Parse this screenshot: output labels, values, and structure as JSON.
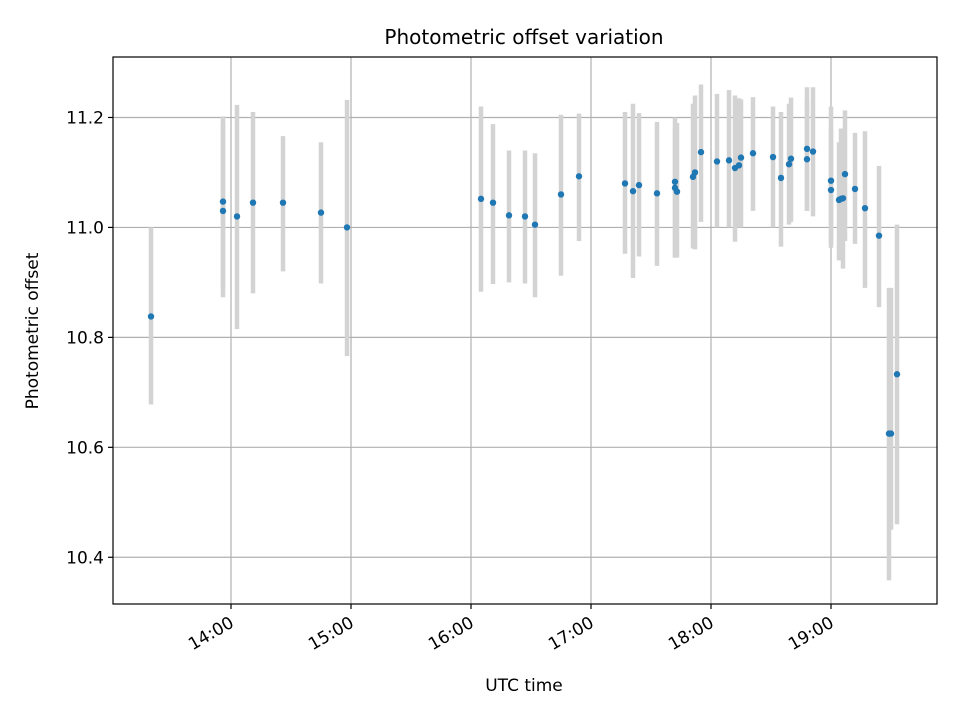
{
  "chart_data": {
    "type": "scatter",
    "title": "Photometric offset variation",
    "xlabel": "UTC time",
    "ylabel": "Photometric offset",
    "x_unit": "minutes of day (UTC)",
    "xlim": [
      "13:01",
      "19:53"
    ],
    "ylim": [
      10.315,
      11.31
    ],
    "x_ticks": [
      "14:00",
      "15:00",
      "16:00",
      "17:00",
      "18:00",
      "19:00"
    ],
    "y_ticks": [
      10.4,
      10.6,
      10.8,
      11.0,
      11.2
    ],
    "y_tick_labels": [
      "10.4",
      "10.6",
      "10.8",
      "11.0",
      "11.2"
    ],
    "grid": true,
    "colors": {
      "points": "#1f77b4",
      "errorbars": "#d3d3d3",
      "grid": "#b0b0b0",
      "axes": "#000000"
    },
    "series": [
      {
        "x": [
          "13:20",
          "13:56",
          "13:56",
          "14:03",
          "14:11",
          "14:26",
          "14:45",
          "14:58",
          "16:05",
          "16:11",
          "16:19",
          "16:27",
          "16:32",
          "16:45",
          "16:54",
          "17:17",
          "17:21",
          "17:24",
          "17:33",
          "17:42",
          "17:42",
          "17:43",
          "17:51",
          "17:52",
          "17:55",
          "18:03",
          "18:09",
          "18:12",
          "18:14",
          "18:15",
          "18:21",
          "18:31",
          "18:35",
          "18:39",
          "18:40",
          "18:48",
          "18:48",
          "18:51",
          "19:00",
          "19:00",
          "19:04",
          "19:05",
          "19:06",
          "19:07",
          "19:12",
          "19:17",
          "19:24",
          "19:29",
          "19:30",
          "19:33"
        ],
        "y": [
          10.838,
          11.03,
          11.047,
          11.02,
          11.045,
          11.045,
          11.027,
          11.0,
          11.052,
          11.045,
          11.022,
          11.02,
          11.005,
          11.06,
          11.093,
          11.08,
          11.066,
          11.077,
          11.062,
          11.083,
          11.072,
          11.065,
          11.092,
          11.1,
          11.137,
          11.12,
          11.122,
          11.108,
          11.113,
          11.127,
          11.135,
          11.128,
          11.09,
          11.115,
          11.125,
          11.143,
          11.124,
          11.138,
          11.085,
          11.068,
          11.05,
          11.052,
          11.053,
          11.097,
          11.07,
          11.035,
          10.985,
          10.625,
          10.625,
          10.733
        ],
        "err_low": [
          10.678,
          10.873,
          10.89,
          10.815,
          10.88,
          10.92,
          10.898,
          10.766,
          10.883,
          10.897,
          10.9,
          10.898,
          10.873,
          10.912,
          10.975,
          10.952,
          10.908,
          10.947,
          10.93,
          10.945,
          10.945,
          10.945,
          10.962,
          10.96,
          11.01,
          11.0,
          11.0,
          10.974,
          11.0,
          11.0,
          11.03,
          11.0,
          10.965,
          11.005,
          11.01,
          11.03,
          11.03,
          11.02,
          10.963,
          10.97,
          10.94,
          10.94,
          10.925,
          10.975,
          10.97,
          10.89,
          10.855,
          10.358,
          10.45,
          10.46
        ],
        "err_high": [
          11.0,
          11.192,
          11.202,
          11.223,
          11.21,
          11.166,
          11.155,
          11.232,
          11.22,
          11.188,
          11.14,
          11.14,
          11.135,
          11.205,
          11.207,
          11.21,
          11.225,
          11.208,
          11.192,
          11.2,
          11.18,
          11.19,
          11.225,
          11.24,
          11.26,
          11.243,
          11.25,
          11.24,
          11.235,
          11.233,
          11.237,
          11.22,
          11.21,
          11.225,
          11.236,
          11.255,
          11.232,
          11.255,
          11.22,
          11.18,
          11.155,
          11.18,
          11.18,
          11.213,
          11.172,
          11.175,
          11.112,
          10.89,
          10.89,
          11.005
        ]
      }
    ]
  }
}
